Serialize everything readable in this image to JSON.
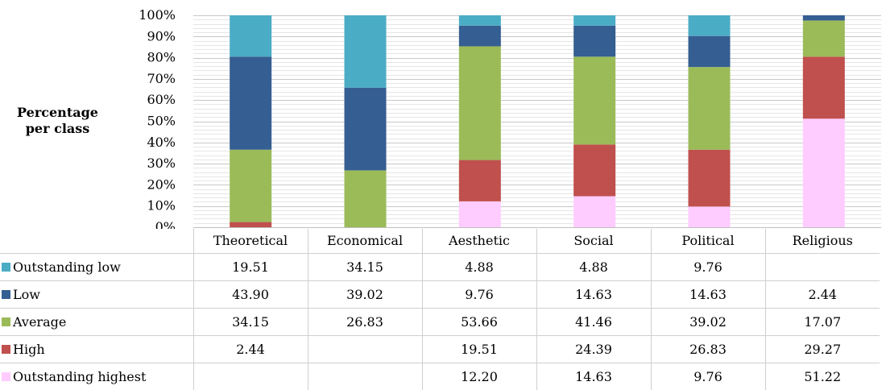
{
  "chart_data": {
    "type": "bar",
    "stacked": true,
    "ylabel_lines": [
      "Percentage",
      "per class"
    ],
    "ylim": [
      0,
      100
    ],
    "yticks": [
      "0%",
      "10%",
      "20%",
      "30%",
      "40%",
      "50%",
      "60%",
      "70%",
      "80%",
      "90%",
      "100%"
    ],
    "categories": [
      "Theoretical",
      "Economical",
      "Aesthetic",
      "Social",
      "Political",
      "Religious"
    ],
    "series": [
      {
        "name": "Outstanding highest",
        "color": "#ffccff",
        "values": [
          null,
          null,
          12.2,
          14.63,
          9.76,
          51.22
        ],
        "labels": [
          "",
          "",
          "12.20",
          "14.63",
          "9.76",
          "51.22"
        ]
      },
      {
        "name": "High",
        "color": "#c0504d",
        "values": [
          2.44,
          null,
          19.51,
          24.39,
          26.83,
          29.27
        ],
        "labels": [
          "2.44",
          "",
          "19.51",
          "24.39",
          "26.83",
          "29.27"
        ]
      },
      {
        "name": "Average",
        "color": "#9bbb59",
        "values": [
          34.15,
          26.83,
          53.66,
          41.46,
          39.02,
          17.07
        ],
        "labels": [
          "34.15",
          "26.83",
          "53.66",
          "41.46",
          "39.02",
          "17.07"
        ]
      },
      {
        "name": "Low",
        "color": "#355e92",
        "values": [
          43.9,
          39.02,
          9.76,
          14.63,
          14.63,
          2.44
        ],
        "labels": [
          "43.90",
          "39.02",
          "9.76",
          "14.63",
          "14.63",
          "2.44"
        ]
      },
      {
        "name": "Outstanding low",
        "color": "#4bacc6",
        "values": [
          19.51,
          34.15,
          4.88,
          4.88,
          9.76,
          null
        ],
        "labels": [
          "19.51",
          "34.15",
          "4.88",
          "4.88",
          "9.76",
          ""
        ]
      }
    ],
    "table_row_order": [
      "Outstanding low",
      "Low",
      "Average",
      "High",
      "Outstanding highest"
    ],
    "grid": true,
    "legend": "data table below chart"
  }
}
